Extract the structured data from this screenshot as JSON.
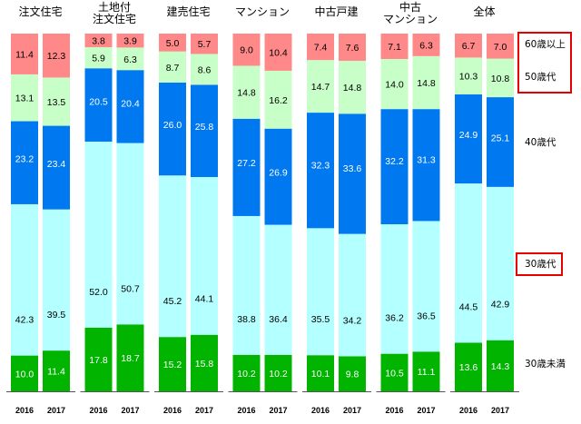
{
  "chart_data": {
    "type": "bar",
    "stacked": true,
    "normalized_percent": true,
    "title": "",
    "xlabel": "",
    "ylabel": "",
    "ylim": [
      0,
      100
    ],
    "grid": false,
    "legend_position": "right",
    "groups": [
      {
        "name": "注文住宅",
        "title_lines": [
          "注文住宅"
        ]
      },
      {
        "name": "土地付注文住宅",
        "title_lines": [
          "土地付",
          "注文住宅"
        ]
      },
      {
        "name": "建売住宅",
        "title_lines": [
          "建売住宅"
        ]
      },
      {
        "name": "マンション",
        "title_lines": [
          "マンション"
        ]
      },
      {
        "name": "中古戸建",
        "title_lines": [
          "中古戸建"
        ]
      },
      {
        "name": "中古マンション",
        "title_lines": [
          "中古",
          "マンション"
        ]
      },
      {
        "name": "全体",
        "title_lines": [
          "全体"
        ]
      }
    ],
    "years": [
      "2016",
      "2017"
    ],
    "series": [
      {
        "name": "30歳未満",
        "color": "#00b400",
        "label_color": "#ffffff",
        "values": [
          [
            10.0,
            11.4
          ],
          [
            17.8,
            18.7
          ],
          [
            15.2,
            15.8
          ],
          [
            10.2,
            10.2
          ],
          [
            10.1,
            9.8
          ],
          [
            10.5,
            11.1
          ],
          [
            13.6,
            14.3
          ]
        ]
      },
      {
        "name": "30歳代",
        "color": "#b4ffff",
        "label_color": "#000000",
        "values": [
          [
            42.3,
            39.5
          ],
          [
            52.0,
            50.7
          ],
          [
            45.2,
            44.1
          ],
          [
            38.8,
            36.4
          ],
          [
            35.5,
            34.2
          ],
          [
            36.2,
            36.5
          ],
          [
            44.5,
            42.9
          ]
        ]
      },
      {
        "name": "40歳代",
        "color": "#0078f0",
        "label_color": "#ffffff",
        "values": [
          [
            23.2,
            23.4
          ],
          [
            20.5,
            20.4
          ],
          [
            26.0,
            25.8
          ],
          [
            27.2,
            26.9
          ],
          [
            32.3,
            33.6
          ],
          [
            32.2,
            31.3
          ],
          [
            24.9,
            25.1
          ]
        ]
      },
      {
        "name": "50歳代",
        "color": "#c8ffc8",
        "label_color": "#000000",
        "values": [
          [
            13.1,
            13.5
          ],
          [
            5.9,
            6.3
          ],
          [
            8.7,
            8.6
          ],
          [
            14.8,
            16.2
          ],
          [
            14.7,
            14.8
          ],
          [
            14.0,
            14.8
          ],
          [
            10.3,
            10.8
          ]
        ]
      },
      {
        "name": "60歳以上",
        "color": "#ff8888",
        "label_color": "#000000",
        "values": [
          [
            11.4,
            12.3
          ],
          [
            3.8,
            3.9
          ],
          [
            5.0,
            5.7
          ],
          [
            9.0,
            10.4
          ],
          [
            7.4,
            7.6
          ],
          [
            7.1,
            6.3
          ],
          [
            6.7,
            7.0
          ]
        ]
      }
    ],
    "legend": {
      "entries": [
        "60歳以上",
        "50歳代",
        "40歳代",
        "30歳代",
        "30歳未満"
      ],
      "highlighted": [
        "60歳以上",
        "50歳代",
        "30歳代"
      ],
      "highlight_color": "#e60000"
    }
  }
}
